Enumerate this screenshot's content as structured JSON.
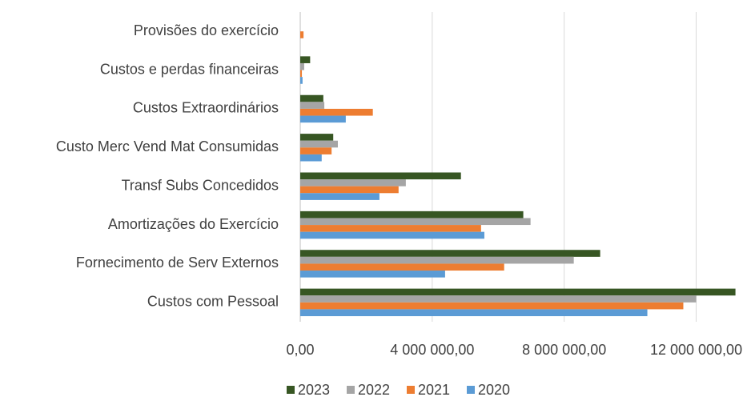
{
  "chart_data": {
    "type": "hbar",
    "categories": [
      "Provisões do exercício",
      "Custos e perdas financeiras",
      "Custos Extraordinários",
      "Custo Merc Vend Mat Consumidas",
      "Transf Subs Concedidos",
      "Amortizações do Exercício",
      "Fornecimento de Serv Externos",
      "Custos com Pessoal"
    ],
    "series": [
      {
        "name": "2023",
        "color": "#375623",
        "values": [
          0,
          300000,
          700000,
          1000000,
          4870000,
          6760000,
          9090000,
          13190000
        ]
      },
      {
        "name": "2022",
        "color": "#a5a5a5",
        "values": [
          0,
          120000,
          730000,
          1140000,
          3200000,
          6980000,
          8290000,
          12000000
        ]
      },
      {
        "name": "2021",
        "color": "#ed7d31",
        "values": [
          100000,
          50000,
          2200000,
          950000,
          2980000,
          5480000,
          6180000,
          11610000
        ]
      },
      {
        "name": "2020",
        "color": "#5b9bd5",
        "values": [
          0,
          70000,
          1380000,
          650000,
          2400000,
          5580000,
          4390000,
          10520000
        ]
      }
    ],
    "xlim": [
      0,
      13200000
    ],
    "xticks": [
      {
        "value": 0,
        "label": "0,00"
      },
      {
        "value": 4000000,
        "label": "4 000 000,00"
      },
      {
        "value": 8000000,
        "label": "8 000 000,00"
      },
      {
        "value": 12000000,
        "label": "12 000 000,00"
      }
    ],
    "grid": true,
    "legend": "bottom"
  }
}
